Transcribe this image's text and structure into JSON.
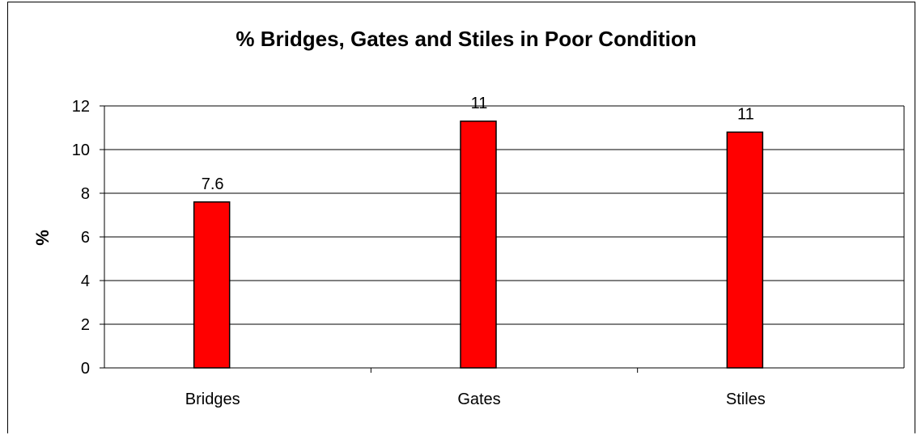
{
  "chart_data": {
    "type": "bar",
    "title": "% Bridges, Gates and Stiles in Poor Condition",
    "xlabel": "",
    "ylabel": "%",
    "categories": [
      "Bridges",
      "Gates",
      "Stiles"
    ],
    "values": [
      7.6,
      11.3,
      10.8
    ],
    "data_labels": [
      "7.6",
      "11",
      "11"
    ],
    "ylim": [
      0,
      12
    ],
    "yticks": [
      "0",
      "2",
      "4",
      "6",
      "8",
      "10",
      "12"
    ],
    "grid": true,
    "legend": "none",
    "bar_color": "#ff0000"
  }
}
